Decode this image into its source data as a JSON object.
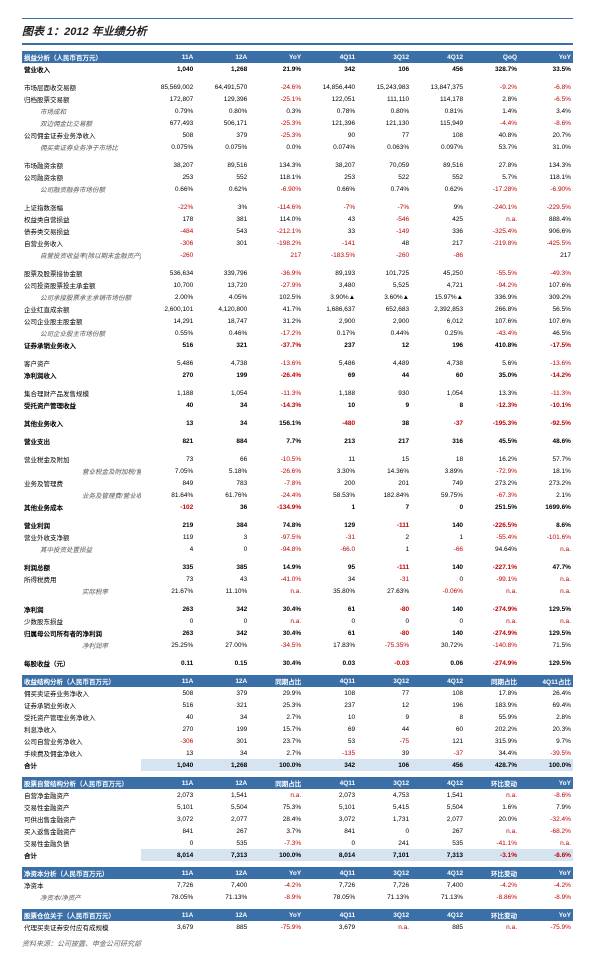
{
  "title": "图表 1：2012 年业绩分析",
  "cols": [
    "11A",
    "12A",
    "YoY",
    "4Q11",
    "3Q12",
    "4Q12",
    "QoQ",
    "YoY"
  ],
  "sections": [
    {
      "hdr": "损益分析（人民币百万元）",
      "rows": [
        {
          "b": 1,
          "c": [
            "营业收入",
            "1,040",
            "1,268",
            "21.9%",
            "342",
            "106",
            "456",
            "328.7%",
            "33.5%"
          ]
        },
        {
          "gap": 1
        },
        {
          "c": [
            "市场层面收交易额",
            "85,569,002",
            "64,491,570",
            "-24.6%",
            "14,856,440",
            "15,243,983",
            "13,847,375",
            "-9.2%",
            "-6.8%"
          ]
        },
        {
          "c": [
            "归档股票交易额",
            "172,807",
            "129,396",
            "-25.1%",
            "122,051",
            "111,110",
            "114,178",
            "2.8%",
            "-6.5%"
          ]
        },
        {
          "i": 1,
          "c": [
            "市场成和",
            "0.79%",
            "0.80%",
            "0.3%",
            "0.78%",
            "0.80%",
            "0.81%",
            "1.4%",
            "3.4%"
          ]
        },
        {
          "i": 1,
          "c": [
            "双边佣金比交易额",
            "677,493",
            "506,171",
            "-25.3%",
            "121,396",
            "121,130",
            "115,949",
            "-4.4%",
            "-8.6%"
          ]
        },
        {
          "c": [
            "公司佣金证券业务净收入",
            "508",
            "379",
            "-25.3%",
            "90",
            "77",
            "108",
            "40.8%",
            "20.7%"
          ]
        },
        {
          "i": 1,
          "c": [
            "佣买卖证券业务净于市场比",
            "0.075%",
            "0.075%",
            "0.0%",
            "0.074%",
            "0.063%",
            "0.097%",
            "53.7%",
            "31.0%"
          ]
        },
        {
          "gap": 1
        },
        {
          "c": [
            "市场融资余额",
            "38,207",
            "89,516",
            "134.3%",
            "38,207",
            "70,059",
            "89,516",
            "27.8%",
            "134.3%"
          ]
        },
        {
          "c": [
            "公司融资余额",
            "253",
            "552",
            "118.1%",
            "253",
            "522",
            "552",
            "5.7%",
            "118.1%"
          ]
        },
        {
          "i": 1,
          "c": [
            "公司融资融券市场份额",
            "0.66%",
            "0.62%",
            "-6.90%",
            "0.66%",
            "0.74%",
            "0.62%",
            "-17.28%",
            "-6.90%"
          ]
        },
        {
          "gap": 1
        },
        {
          "c": [
            "上证指数涨幅",
            "-22%",
            "3%",
            "-114.6%",
            "-7%",
            "-7%",
            "9%",
            "-240.1%",
            "-229.5%"
          ]
        },
        {
          "c": [
            "权益类自营损益",
            "178",
            "381",
            "114.0%",
            "43",
            "-546",
            "425",
            "n.a.",
            "888.4%"
          ]
        },
        {
          "c": [
            "债券类交易损益",
            "-484",
            "543",
            "-212.1%",
            "33",
            "-149",
            "336",
            "-325.4%",
            "906.6%"
          ]
        },
        {
          "c": [
            "自营业务收入",
            "-306",
            "301",
            "-198.2%",
            "-141",
            "48",
            "217",
            "-219.8%",
            "-425.5%"
          ]
        },
        {
          "i": 1,
          "c": [
            "自营投资收益率(除以期末金融资产)",
            "-260",
            "",
            "217",
            "-183.5%",
            "-260",
            "-86",
            "",
            "217",
            "-353.1%",
            "-183.5%"
          ],
          "r": [
            3,
            6,
            7
          ]
        },
        {
          "gap": 1
        },
        {
          "c": [
            "股票及股票接协金额",
            "536,634",
            "339,796",
            "-36.9%",
            "89,193",
            "101,725",
            "45,250",
            "-55.5%",
            "-49.3%"
          ]
        },
        {
          "c": [
            "公司投资股票投主承金额",
            "10,700",
            "13,720",
            "-27.9%",
            "3,480",
            "5,525",
            "4,721",
            "-94.2%",
            "107.6%"
          ]
        },
        {
          "i": 1,
          "c": [
            "公司承接股票承主承销市场份额",
            "2.00%",
            "4.05%",
            "102.5%",
            "3.90%▲",
            "3.60%▲",
            "15.97%▲",
            "336.9%",
            "309.2%"
          ]
        },
        {
          "c": [
            "企业红直成余额",
            "2,600,101",
            "4,120,800",
            "41.7%",
            "1,686,637",
            "652,683",
            "2,392,853",
            "266.8%",
            "56.5%"
          ]
        },
        {
          "c": [
            "公司企业股主股金额",
            "14,291",
            "18,747",
            "31.2%",
            "2,900",
            "2,900",
            "6,012",
            "107.6%",
            "107.6%"
          ]
        },
        {
          "i": 1,
          "c": [
            "公司企业股主市场份额",
            "0.55%",
            "0.46%",
            "-17.2%",
            "0.17%",
            "0.44%",
            "0.25%",
            "-43.4%",
            "46.5%"
          ]
        },
        {
          "b": 1,
          "c": [
            "证券承销业务收入",
            "516",
            "321",
            "-37.7%",
            "237",
            "12",
            "196",
            "410.8%",
            "-17.5%"
          ]
        },
        {
          "gap": 1
        },
        {
          "c": [
            "客户资产",
            "5,486",
            "4,738",
            "-13.6%",
            "5,486",
            "4,489",
            "4,738",
            "5.6%",
            "-13.6%"
          ]
        },
        {
          "b": 1,
          "c": [
            "净利润收入",
            "270",
            "199",
            "-26.4%",
            "69",
            "44",
            "60",
            "35.0%",
            "-14.2%"
          ]
        },
        {
          "gap": 1
        },
        {
          "c": [
            "集合理财产品发售规模",
            "1,188",
            "1,054",
            "-11.3%",
            "1,188",
            "930",
            "1,054",
            "13.3%",
            "-11.3%"
          ]
        },
        {
          "b": 1,
          "c": [
            "受托资产管理收益",
            "40",
            "34",
            "-14.3%",
            "10",
            "9",
            "8",
            "-12.3%",
            "-10.1%"
          ]
        },
        {
          "gap": 1
        },
        {
          "b": 1,
          "c": [
            "其他业务收入",
            "13",
            "34",
            "156.1%",
            "-480",
            "38",
            "-37",
            "-195.3%",
            "-92.5%"
          ]
        },
        {
          "gap": 1
        },
        {
          "b": 1,
          "c": [
            "营业支出",
            "821",
            "884",
            "7.7%",
            "213",
            "217",
            "316",
            "45.5%",
            "48.6%"
          ]
        },
        {
          "gap": 1
        },
        {
          "c": [
            "营业税金及附加",
            "73",
            "66",
            "-10.5%",
            "11",
            "15",
            "18",
            "16.2%",
            "57.7%"
          ]
        },
        {
          "i": 2,
          "c": [
            "营业税金及附加税/营业收入",
            "7.05%",
            "5.18%",
            "-26.6%",
            "3.30%",
            "14.36%",
            "3.89%",
            "-72.9%",
            "18.1%"
          ]
        },
        {
          "c": [
            "业务及管理费",
            "849",
            "783",
            "-7.8%",
            "200",
            "201",
            "749",
            "273.2%",
            "273.2%"
          ]
        },
        {
          "i": 2,
          "c": [
            "业务及管理费/营业收入",
            "81.64%",
            "61.76%",
            "-24.4%",
            "58.53%",
            "182.84%",
            "59.75%",
            "-67.3%",
            "2.1%"
          ]
        },
        {
          "b": 1,
          "c": [
            "其他业务成本",
            "-102",
            "36",
            "-134.9%",
            "1",
            "7",
            "0",
            "251.5%",
            "1699.6%"
          ],
          "r": [
            3
          ]
        },
        {
          "gap": 1
        },
        {
          "b": 1,
          "c": [
            "营业利润",
            "219",
            "384",
            "74.8%",
            "129",
            "-111",
            "140",
            "-226.5%",
            "8.6%"
          ]
        },
        {
          "c": [
            "营业外收支净额",
            "119",
            "3",
            "-97.5%",
            "-31",
            "2",
            "1",
            "-55.4%",
            "-101.6%"
          ]
        },
        {
          "i": 1,
          "c": [
            "其中投资处置损益",
            "4",
            "0",
            "-94.8%",
            "-66.0",
            "1",
            "-66",
            "94.64%",
            "n.a."
          ]
        },
        {
          "gap": 1
        },
        {
          "b": 1,
          "c": [
            "利润总额",
            "335",
            "385",
            "14.9%",
            "95",
            "-111",
            "140",
            "-227.1%",
            "47.7%"
          ]
        },
        {
          "c": [
            "所得税费用",
            "73",
            "43",
            "-41.0%",
            "34",
            "-31",
            "0",
            "-99.1%",
            "n.a."
          ]
        },
        {
          "i": 2,
          "c": [
            "实际税率",
            "21.67%",
            "11.10%",
            "n.a.",
            "35.80%",
            "27.63%",
            "-0.06%",
            "n.a.",
            "n.a."
          ]
        },
        {
          "gap": 1
        },
        {
          "b": 1,
          "c": [
            "净利润",
            "263",
            "342",
            "30.4%",
            "61",
            "-80",
            "140",
            "-274.9%",
            "129.5%"
          ]
        },
        {
          "c": [
            "少数股东损益",
            "0",
            "0",
            "n.a.",
            "0",
            "0",
            "0",
            "n.a.",
            "n.a."
          ]
        },
        {
          "b": 1,
          "c": [
            "归属母公司所有者的净利润",
            "263",
            "342",
            "30.4%",
            "61",
            "-80",
            "140",
            "-274.9%",
            "129.5%"
          ]
        },
        {
          "i": 2,
          "c": [
            "净利润率",
            "25.25%",
            "27.00%",
            "-34.5%",
            "17.83%",
            "-75.35%",
            "30.72%",
            "-140.8%",
            "71.5%"
          ]
        },
        {
          "gap": 1
        },
        {
          "b": 1,
          "c": [
            "每股收益（元）",
            "0.11",
            "0.15",
            "30.4%",
            "0.03",
            "-0.03",
            "0.06",
            "-274.9%",
            "129.5%"
          ]
        }
      ]
    },
    {
      "hdr": "收益结构分析（人民币百万元）",
      "cols": [
        "11A",
        "12A",
        "同期占比",
        "4Q11",
        "3Q12",
        "4Q12",
        "同期占比",
        "4Q11占比"
      ],
      "rows": [
        {
          "c": [
            "佣买卖证券业务净收入",
            "508",
            "379",
            "29.9%",
            "108",
            "77",
            "108",
            "17.8%",
            "26.4%"
          ]
        },
        {
          "c": [
            "证券承销业务收入",
            "516",
            "321",
            "25.3%",
            "237",
            "12",
            "196",
            "183.9%",
            "69.4%"
          ]
        },
        {
          "c": [
            "受托资产管理业务净收入",
            "40",
            "34",
            "2.7%",
            "10",
            "9",
            "8",
            "55.9%",
            "2.8%"
          ]
        },
        {
          "c": [
            "利息净收入",
            "270",
            "199",
            "15.7%",
            "69",
            "44",
            "60",
            "202.2%",
            "20.3%"
          ]
        },
        {
          "c": [
            "公司自营业务净收入",
            "-306",
            "301",
            "23.7%",
            "53",
            "-75",
            "121",
            "315.9%",
            "9.7%"
          ]
        },
        {
          "c": [
            "手续费及佣金净收入",
            "13",
            "34",
            "2.7%",
            "-135",
            "39",
            "-37",
            "34.4%",
            "-39.5%"
          ]
        },
        {
          "b": 1,
          "bg": 1,
          "c": [
            "合计",
            "1,040",
            "1,268",
            "100.0%",
            "342",
            "106",
            "456",
            "428.7%",
            "100.0%"
          ]
        }
      ]
    },
    {
      "hdr": "股票自营结构分析（人民币百万元）",
      "cols": [
        "11A",
        "12A",
        "同期占比",
        "4Q11",
        "3Q12",
        "4Q12",
        "环比变动",
        "YoY"
      ],
      "rows": [
        {
          "c": [
            "自营净金融资产",
            "2,073",
            "1,541",
            "n.a.",
            "2,073",
            "4,753",
            "1,541",
            "n.a.",
            "-8.6%"
          ]
        },
        {
          "c": [
            "交易性金融资产",
            "5,101",
            "5,504",
            "75.3%",
            "5,101",
            "5,415",
            "5,504",
            "1.6%",
            "7.9%"
          ]
        },
        {
          "c": [
            "可供出售金融资产",
            "3,072",
            "2,077",
            "28.4%",
            "3,072",
            "1,731",
            "2,077",
            "20.0%",
            "-32.4%"
          ]
        },
        {
          "c": [
            "买入返售金融资产",
            "841",
            "267",
            "3.7%",
            "841",
            "0",
            "267",
            "n.a.",
            "-68.2%"
          ]
        },
        {
          "c": [
            "交易性金融负债",
            "0",
            "535",
            "-7.3%",
            "0",
            "241",
            "535",
            "-41.1%",
            "n.a."
          ]
        },
        {
          "b": 1,
          "bg": 1,
          "c": [
            "合计",
            "8,014",
            "7,313",
            "100.0%",
            "8,014",
            "7,101",
            "7,313",
            "-3.1%",
            "-8.6%"
          ]
        }
      ]
    },
    {
      "hdr": "净资本分析（人民币百万元）",
      "cols": [
        "11A",
        "12A",
        "YoY",
        "4Q11",
        "3Q12",
        "4Q12",
        "环比变动",
        "YoY"
      ],
      "rows": [
        {
          "c": [
            "净资本",
            "7,726",
            "7,400",
            "-4.2%",
            "7,726",
            "7,726",
            "7,400",
            "-4.2%",
            "-4.2%"
          ]
        },
        {
          "i": 1,
          "c": [
            "净资本/净资产",
            "78.05%",
            "71.13%",
            "-8.9%",
            "78.05%",
            "71.13%",
            "71.13%",
            "-8.86%",
            "-8.9%"
          ]
        }
      ]
    },
    {
      "hdr": "股票仓位关于（人民币百万元）",
      "cols": [
        "11A",
        "12A",
        "YoY",
        "4Q11",
        "3Q12",
        "4Q12",
        "环比变动",
        "YoY"
      ],
      "rows": [
        {
          "c": [
            "代理买卖证券安付应有成规模",
            "3,679",
            "885",
            "-75.9%",
            "3,679",
            "n.a.",
            "885",
            "n.a.",
            "-75.9%"
          ]
        }
      ]
    }
  ],
  "source": "资料来源：公司披露、申金公司研究部"
}
